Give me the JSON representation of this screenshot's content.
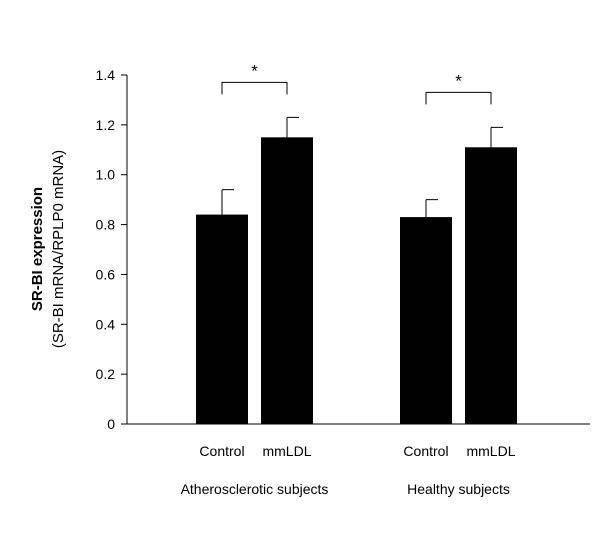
{
  "chart_data": {
    "type": "bar",
    "ylabel": "SR-BI expression",
    "ylabel_sub": "(SR-BI mRNA/RPLP0 mRNA)",
    "ylim": [
      0,
      1.4
    ],
    "yticks": [
      "0",
      "0.2",
      "0.4",
      "0.6",
      "0.8",
      "1.0",
      "1.2",
      "1.4"
    ],
    "grid": false,
    "groups": [
      {
        "name": "Atherosclerotic subjects",
        "bars": [
          {
            "category": "Control",
            "value": 0.84,
            "error": 0.1
          },
          {
            "category": "mmLDL",
            "value": 1.15,
            "error": 0.08
          }
        ],
        "significance": "*"
      },
      {
        "name": "Healthy subjects",
        "bars": [
          {
            "category": "Control",
            "value": 0.83,
            "error": 0.07
          },
          {
            "category": "mmLDL",
            "value": 1.11,
            "error": 0.08
          }
        ],
        "significance": "*"
      }
    ],
    "bar_color": "#000000"
  }
}
